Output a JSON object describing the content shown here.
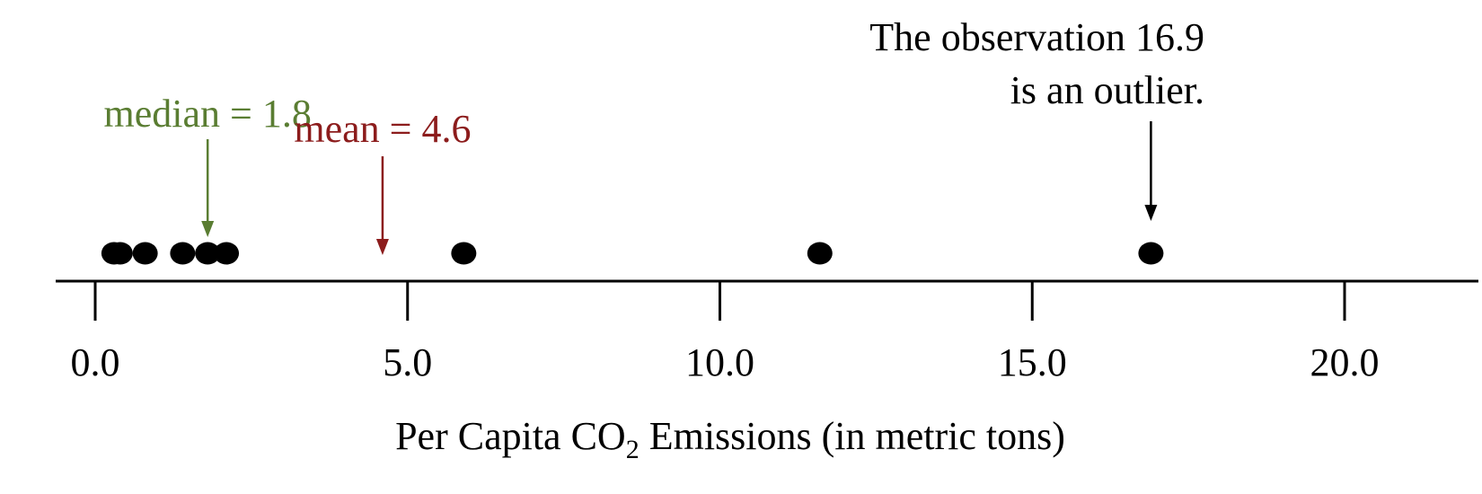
{
  "chart_data": {
    "type": "scatter",
    "title": "",
    "xlabel_parts": [
      "Per Capita CO",
      "2",
      " Emissions (in metric tons)"
    ],
    "ylabel": "",
    "xlim": [
      0,
      21.5
    ],
    "ticks": [
      0.0,
      5.0,
      10.0,
      15.0,
      20.0
    ],
    "tick_labels": [
      "0.0",
      "5.0",
      "10.0",
      "15.0",
      "20.0"
    ],
    "grid": false,
    "points": [
      0.3,
      0.4,
      0.8,
      1.4,
      1.8,
      2.1,
      5.9,
      11.6,
      16.9
    ],
    "annotations": [
      {
        "id": "median",
        "lines": [
          "median = 1.8"
        ],
        "value": 1.8,
        "color": "#5a7d32",
        "align": "center"
      },
      {
        "id": "mean",
        "lines": [
          "mean = 4.6"
        ],
        "value": 4.6,
        "color": "#8c1c1c",
        "align": "center"
      },
      {
        "id": "outlier",
        "lines": [
          "The observation 16.9",
          "is an outlier."
        ],
        "value": 16.9,
        "color": "#000000",
        "align": "right"
      }
    ]
  },
  "colors": {
    "points": "#000000",
    "axis": "#000000",
    "median": "#5a7d32",
    "mean": "#8c1c1c",
    "outlier": "#000000"
  }
}
